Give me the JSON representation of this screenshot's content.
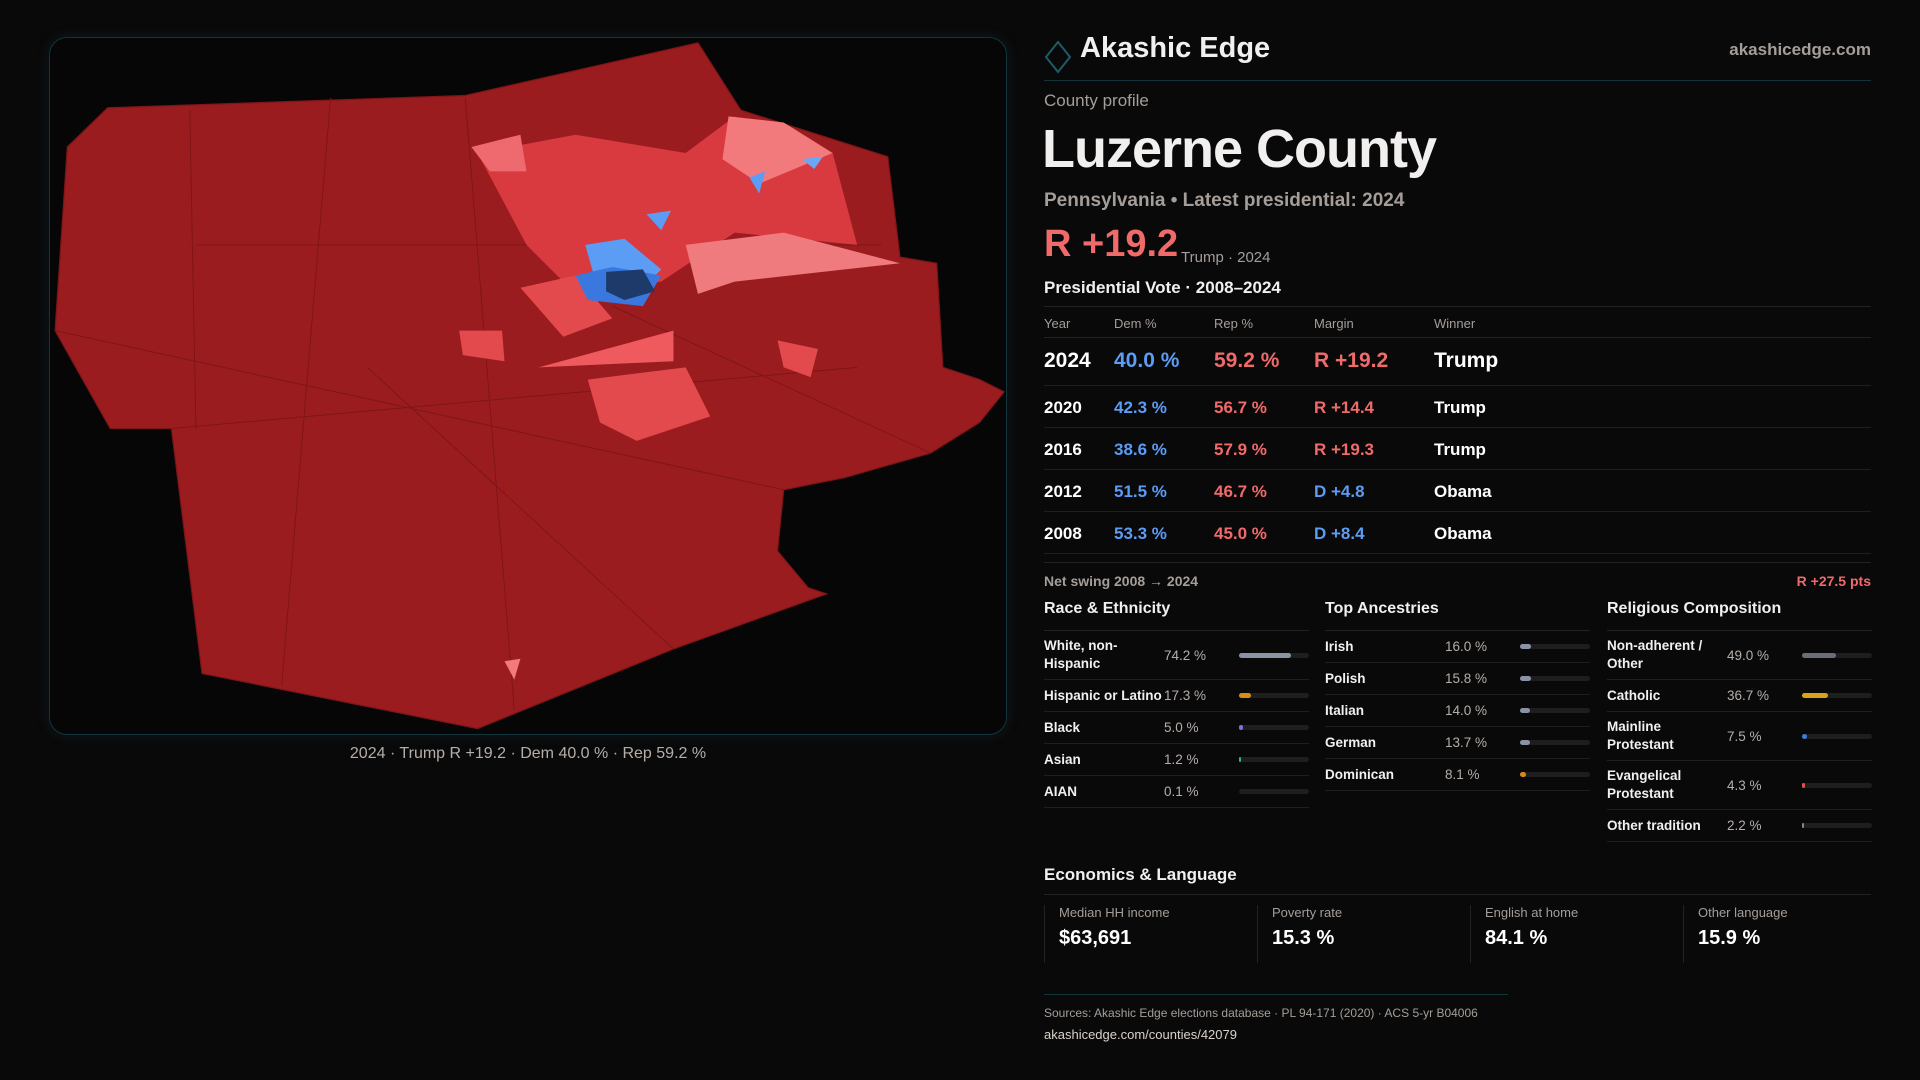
{
  "brand": {
    "name": "Akashic Edge",
    "site": "akashicedge.com"
  },
  "profile": {
    "kicker": "County profile",
    "title": "Luzerne County",
    "subtitle": "Pennsylvania • Latest presidential: 2024",
    "margin": "R +19.2",
    "margin_note": "Trump · 2024"
  },
  "map": {
    "caption": "2024 · Trump R +19.2 · Dem 40.0 % · Rep 59.2 %"
  },
  "votes": {
    "heading": "Presidential Vote · 2008–2024",
    "columns": [
      "Year",
      "Dem %",
      "Rep %",
      "Margin",
      "Winner"
    ],
    "rows": [
      {
        "year": "2024",
        "dem": "40.0 %",
        "rep": "59.2 %",
        "margin": "R +19.2",
        "winner": "Trump"
      },
      {
        "year": "2020",
        "dem": "42.3 %",
        "rep": "56.7 %",
        "margin": "R +14.4",
        "winner": "Trump"
      },
      {
        "year": "2016",
        "dem": "38.6 %",
        "rep": "57.9 %",
        "margin": "R +19.3",
        "winner": "Trump"
      },
      {
        "year": "2012",
        "dem": "51.5 %",
        "rep": "46.7 %",
        "margin": "D +4.8",
        "winner": "Obama"
      },
      {
        "year": "2008",
        "dem": "53.3 %",
        "rep": "45.0 %",
        "margin": "D +8.4",
        "winner": "Obama"
      }
    ],
    "swing_label": "Net swing 2008 → 2024",
    "swing_value": "R +27.5 pts"
  },
  "race": {
    "heading": "Race & Ethnicity",
    "items": [
      {
        "label": "White, non-Hispanic",
        "value": "74.2 %",
        "pct": 74.2,
        "color": "#8a93a6"
      },
      {
        "label": "Hispanic or Latino",
        "value": "17.3 %",
        "pct": 17.3,
        "color": "#d98b1a"
      },
      {
        "label": "Black",
        "value": "5.0 %",
        "pct": 5.0,
        "color": "#8a6ad8"
      },
      {
        "label": "Asian",
        "value": "1.2 %",
        "pct": 1.2,
        "color": "#2fb58a"
      },
      {
        "label": "AIAN",
        "value": "0.1 %",
        "pct": 0.1,
        "color": "#888"
      }
    ]
  },
  "ancestry": {
    "heading": "Top Ancestries",
    "items": [
      {
        "label": "Irish",
        "value": "16.0 %",
        "pct": 16.0,
        "color": "#8a93a6"
      },
      {
        "label": "Polish",
        "value": "15.8 %",
        "pct": 15.8,
        "color": "#8a93a6"
      },
      {
        "label": "Italian",
        "value": "14.0 %",
        "pct": 14.0,
        "color": "#8a93a6"
      },
      {
        "label": "German",
        "value": "13.7 %",
        "pct": 13.7,
        "color": "#8a93a6"
      },
      {
        "label": "Dominican",
        "value": "8.1 %",
        "pct": 8.1,
        "color": "#d98b1a"
      }
    ]
  },
  "religion": {
    "heading": "Religious Composition",
    "items": [
      {
        "label": "Non-adherent / Other",
        "value": "49.0 %",
        "pct": 49.0,
        "color": "#6a6e7a"
      },
      {
        "label": "Catholic",
        "value": "36.7 %",
        "pct": 36.7,
        "color": "#d9a21a"
      },
      {
        "label": "Mainline Protestant",
        "value": "7.5 %",
        "pct": 7.5,
        "color": "#3a7fe0"
      },
      {
        "label": "Evangelical Protestant",
        "value": "4.3 %",
        "pct": 4.3,
        "color": "#e05050"
      },
      {
        "label": "Other tradition",
        "value": "2.2 %",
        "pct": 2.2,
        "color": "#888"
      }
    ]
  },
  "economics": {
    "heading": "Economics & Language",
    "stats": [
      {
        "label": "Median HH income",
        "value": "$63,691"
      },
      {
        "label": "Poverty rate",
        "value": "15.3 %"
      },
      {
        "label": "English at home",
        "value": "84.1 %"
      },
      {
        "label": "Other language",
        "value": "15.9 %"
      }
    ]
  },
  "footer": {
    "sources": "Sources: Akashic Edge elections database · PL 94-171 (2020) · ACS 5-yr B04006",
    "url": "akashicedge.com/counties/42079"
  },
  "colors": {
    "rep": "#f06a6a",
    "dem": "#5b9cf5",
    "map_base": "#9b1c1f"
  }
}
